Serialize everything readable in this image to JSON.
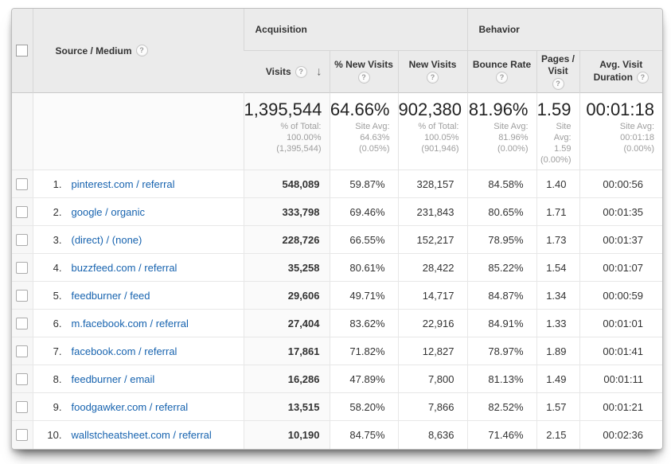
{
  "icons": {
    "help": "?",
    "sort_desc": "↓"
  },
  "colors": {
    "header_bg": "#ebebeb",
    "link_blue": "#1763af",
    "sorted_column_bg": "#fafafa",
    "subtext_gray": "#9e9e9e"
  },
  "table": {
    "groups": {
      "acquisition": "Acquisition",
      "behavior": "Behavior"
    },
    "headers": {
      "source": "Source / Medium",
      "visits": "Visits",
      "pct_new": "% New Visits",
      "new_visits": "New Visits",
      "bounce": "Bounce Rate",
      "pages_line1": "Pages /",
      "pages_line2": "Visit",
      "duration_line1": "Avg. Visit",
      "duration_line2": "Duration"
    },
    "totals": {
      "visits": {
        "value": "1,395,544",
        "sub": [
          "% of Total:",
          "100.00%",
          "(1,395,544)"
        ]
      },
      "pct_new": {
        "value": "64.66%",
        "sub": [
          "Site Avg:",
          "64.63%",
          "(0.05%)"
        ]
      },
      "new_visits": {
        "value": "902,380",
        "sub": [
          "% of Total:",
          "100.05%",
          "(901,946)"
        ]
      },
      "bounce": {
        "value": "81.96%",
        "sub": [
          "Site Avg:",
          "81.96%",
          "(0.00%)"
        ]
      },
      "pages": {
        "value": "1.59",
        "sub": [
          "Site",
          "Avg:",
          "1.59",
          "(0.00%)"
        ]
      },
      "duration": {
        "value": "00:01:18",
        "sub": [
          "Site Avg:",
          "00:01:18",
          "(0.00%)"
        ]
      }
    },
    "rows": [
      {
        "rank": "1.",
        "source": "pinterest.com / referral",
        "visits": "548,089",
        "pct_new": "59.87%",
        "new_visits": "328,157",
        "bounce": "84.58%",
        "pages": "1.40",
        "duration": "00:00:56"
      },
      {
        "rank": "2.",
        "source": "google / organic",
        "visits": "333,798",
        "pct_new": "69.46%",
        "new_visits": "231,843",
        "bounce": "80.65%",
        "pages": "1.71",
        "duration": "00:01:35"
      },
      {
        "rank": "3.",
        "source": "(direct) / (none)",
        "visits": "228,726",
        "pct_new": "66.55%",
        "new_visits": "152,217",
        "bounce": "78.95%",
        "pages": "1.73",
        "duration": "00:01:37"
      },
      {
        "rank": "4.",
        "source": "buzzfeed.com / referral",
        "visits": "35,258",
        "pct_new": "80.61%",
        "new_visits": "28,422",
        "bounce": "85.22%",
        "pages": "1.54",
        "duration": "00:01:07"
      },
      {
        "rank": "5.",
        "source": "feedburner / feed",
        "visits": "29,606",
        "pct_new": "49.71%",
        "new_visits": "14,717",
        "bounce": "84.87%",
        "pages": "1.34",
        "duration": "00:00:59"
      },
      {
        "rank": "6.",
        "source": "m.facebook.com / referral",
        "visits": "27,404",
        "pct_new": "83.62%",
        "new_visits": "22,916",
        "bounce": "84.91%",
        "pages": "1.33",
        "duration": "00:01:01"
      },
      {
        "rank": "7.",
        "source": "facebook.com / referral",
        "visits": "17,861",
        "pct_new": "71.82%",
        "new_visits": "12,827",
        "bounce": "78.97%",
        "pages": "1.89",
        "duration": "00:01:41"
      },
      {
        "rank": "8.",
        "source": "feedburner / email",
        "visits": "16,286",
        "pct_new": "47.89%",
        "new_visits": "7,800",
        "bounce": "81.13%",
        "pages": "1.49",
        "duration": "00:01:11"
      },
      {
        "rank": "9.",
        "source": "foodgawker.com / referral",
        "visits": "13,515",
        "pct_new": "58.20%",
        "new_visits": "7,866",
        "bounce": "82.52%",
        "pages": "1.57",
        "duration": "00:01:21"
      },
      {
        "rank": "10.",
        "source": "wallstcheatsheet.com / referral",
        "visits": "10,190",
        "pct_new": "84.75%",
        "new_visits": "8,636",
        "bounce": "71.46%",
        "pages": "2.15",
        "duration": "00:02:36"
      }
    ]
  }
}
